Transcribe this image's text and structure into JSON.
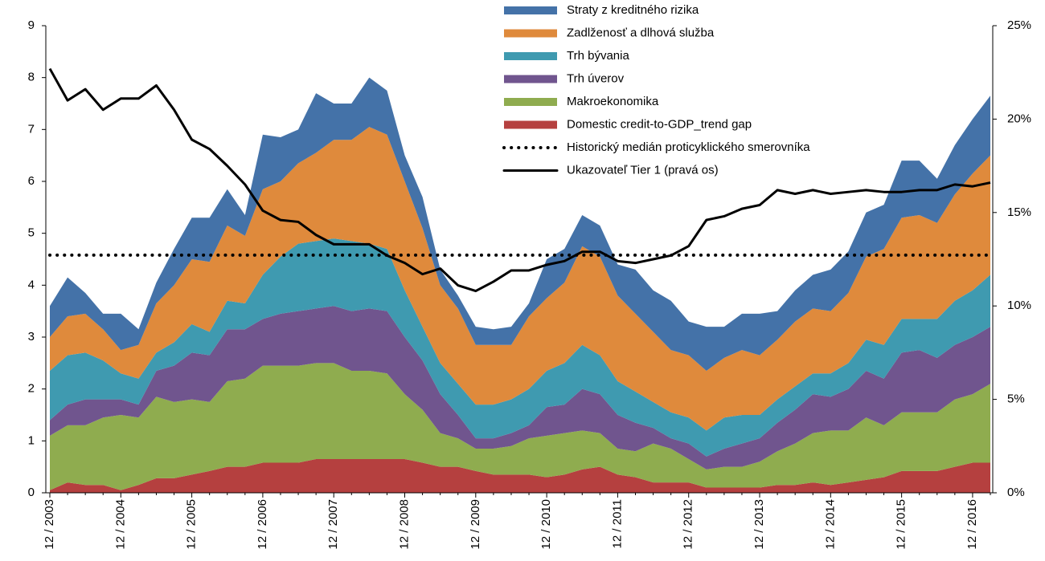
{
  "chart_data": {
    "type": "stacked_area",
    "categories": [
      "12 / 2003",
      null,
      null,
      null,
      "12 / 2004",
      null,
      null,
      null,
      "12 / 2005",
      null,
      null,
      null,
      "12 / 2006",
      null,
      null,
      null,
      "12 / 2007",
      null,
      null,
      null,
      "12 / 2008",
      null,
      null,
      null,
      "12 / 2009",
      null,
      null,
      null,
      "12 / 2010",
      null,
      null,
      null,
      "12 / 2011",
      null,
      null,
      null,
      "12 / 2012",
      null,
      null,
      null,
      "12 / 2013",
      null,
      null,
      null,
      "12 / 2014",
      null,
      null,
      null,
      "12 / 2015",
      null,
      null,
      null,
      "12 / 2016",
      null
    ],
    "series": [
      {
        "name": "Domestic credit-to-GDP_trend gap",
        "color": "#b5403f",
        "values": [
          0.05,
          0.2,
          0.15,
          0.15,
          0.05,
          0.15,
          0.28,
          0.28,
          0.35,
          0.42,
          0.5,
          0.5,
          0.58,
          0.58,
          0.58,
          0.65,
          0.65,
          0.65,
          0.65,
          0.65,
          0.65,
          0.58,
          0.5,
          0.5,
          0.42,
          0.35,
          0.35,
          0.35,
          0.3,
          0.35,
          0.45,
          0.5,
          0.35,
          0.3,
          0.2,
          0.2,
          0.2,
          0.1,
          0.1,
          0.1,
          0.1,
          0.15,
          0.15,
          0.2,
          0.15,
          0.2,
          0.25,
          0.3,
          0.42,
          0.42,
          0.42,
          0.5,
          0.58,
          0.58
        ]
      },
      {
        "name": "Makroekonomika",
        "color": "#8fac4f",
        "values": [
          1.05,
          1.1,
          1.15,
          1.3,
          1.45,
          1.3,
          1.57,
          1.47,
          1.45,
          1.33,
          1.65,
          1.7,
          1.87,
          1.87,
          1.87,
          1.85,
          1.85,
          1.7,
          1.7,
          1.65,
          1.25,
          1.02,
          0.65,
          0.55,
          0.43,
          0.5,
          0.55,
          0.7,
          0.8,
          0.8,
          0.75,
          0.65,
          0.5,
          0.5,
          0.75,
          0.65,
          0.45,
          0.35,
          0.4,
          0.4,
          0.5,
          0.65,
          0.8,
          0.95,
          1.05,
          1.0,
          1.2,
          1.0,
          1.13,
          1.13,
          1.13,
          1.3,
          1.32,
          1.52
        ]
      },
      {
        "name": "Trh úverov",
        "color": "#70558e",
        "values": [
          0.3,
          0.4,
          0.5,
          0.35,
          0.3,
          0.25,
          0.5,
          0.7,
          0.9,
          0.9,
          1.0,
          0.95,
          0.9,
          1.0,
          1.05,
          1.05,
          1.1,
          1.15,
          1.2,
          1.2,
          1.1,
          0.95,
          0.75,
          0.45,
          0.2,
          0.2,
          0.25,
          0.25,
          0.55,
          0.55,
          0.8,
          0.75,
          0.65,
          0.55,
          0.3,
          0.2,
          0.3,
          0.25,
          0.35,
          0.45,
          0.45,
          0.55,
          0.65,
          0.75,
          0.65,
          0.8,
          0.9,
          0.9,
          1.15,
          1.2,
          1.05,
          1.05,
          1.1,
          1.1
        ]
      },
      {
        "name": "Trh bývania",
        "color": "#3f9ab0",
        "values": [
          0.95,
          0.95,
          0.9,
          0.75,
          0.5,
          0.5,
          0.35,
          0.45,
          0.55,
          0.45,
          0.55,
          0.5,
          0.85,
          1.1,
          1.3,
          1.3,
          1.3,
          1.35,
          1.25,
          1.2,
          0.9,
          0.65,
          0.6,
          0.6,
          0.65,
          0.65,
          0.65,
          0.7,
          0.7,
          0.8,
          0.85,
          0.75,
          0.65,
          0.6,
          0.5,
          0.5,
          0.5,
          0.5,
          0.6,
          0.55,
          0.45,
          0.45,
          0.45,
          0.4,
          0.45,
          0.5,
          0.6,
          0.65,
          0.65,
          0.6,
          0.75,
          0.85,
          0.9,
          1.0
        ]
      },
      {
        "name": "Zadlženosť a dlhová služba",
        "color": "#df8a3c",
        "values": [
          0.65,
          0.75,
          0.75,
          0.6,
          0.45,
          0.65,
          0.95,
          1.1,
          1.25,
          1.35,
          1.45,
          1.3,
          1.65,
          1.45,
          1.55,
          1.7,
          1.9,
          1.95,
          2.25,
          2.2,
          2.1,
          1.9,
          1.5,
          1.45,
          1.15,
          1.15,
          1.05,
          1.4,
          1.4,
          1.55,
          1.9,
          1.9,
          1.65,
          1.5,
          1.35,
          1.2,
          1.2,
          1.15,
          1.15,
          1.25,
          1.15,
          1.15,
          1.25,
          1.25,
          1.2,
          1.35,
          1.6,
          1.85,
          1.95,
          2.0,
          1.85,
          2.05,
          2.25,
          2.3
        ]
      },
      {
        "name": "Straty z kreditného rizika",
        "color": "#4472a8",
        "values": [
          0.6,
          0.75,
          0.4,
          0.3,
          0.7,
          0.3,
          0.4,
          0.7,
          0.8,
          0.85,
          0.7,
          0.4,
          1.05,
          0.85,
          0.65,
          1.15,
          0.7,
          0.7,
          0.95,
          0.85,
          0.5,
          0.6,
          0.3,
          0.25,
          0.35,
          0.3,
          0.35,
          0.25,
          0.75,
          0.65,
          0.6,
          0.6,
          0.6,
          0.85,
          0.8,
          0.95,
          0.65,
          0.85,
          0.6,
          0.7,
          0.8,
          0.55,
          0.6,
          0.65,
          0.8,
          0.8,
          0.85,
          0.85,
          1.1,
          1.05,
          0.85,
          0.95,
          1.05,
          1.15
        ]
      }
    ],
    "line_series": [
      {
        "name": "Historický medián proticyklického smerovníka",
        "color": "#000000",
        "dash": "dotted",
        "value": 4.58
      },
      {
        "name": "Ukazovateľ Tier 1 (pravá os)",
        "color": "#000000",
        "axis": "y2",
        "values": [
          22.7,
          21.0,
          21.6,
          20.5,
          21.1,
          21.1,
          21.8,
          20.5,
          18.9,
          18.4,
          17.5,
          16.5,
          15.1,
          14.6,
          14.5,
          13.8,
          13.3,
          13.3,
          13.3,
          12.7,
          12.3,
          11.7,
          12.0,
          11.1,
          10.8,
          11.3,
          11.9,
          11.9,
          12.2,
          12.4,
          12.9,
          12.9,
          12.4,
          12.3,
          12.5,
          12.7,
          13.2,
          14.6,
          14.8,
          15.2,
          15.4,
          16.2,
          16.0,
          16.2,
          16.0,
          16.1,
          16.2,
          16.1,
          16.1,
          16.2,
          16.2,
          16.5,
          16.4,
          16.6
        ]
      }
    ],
    "ylim": [
      0,
      9
    ],
    "yticks": [
      0,
      1,
      2,
      3,
      4,
      5,
      6,
      7,
      8,
      9
    ],
    "y2lim": [
      0,
      25
    ],
    "y2ticks": [
      {
        "value": 0,
        "label": "0%"
      },
      {
        "value": 5,
        "label": "5%"
      },
      {
        "value": 10,
        "label": "10%"
      },
      {
        "value": 15,
        "label": "15%"
      },
      {
        "value": 20,
        "label": "20%"
      },
      {
        "value": 25,
        "label": "25%"
      }
    ],
    "legend": "top"
  }
}
